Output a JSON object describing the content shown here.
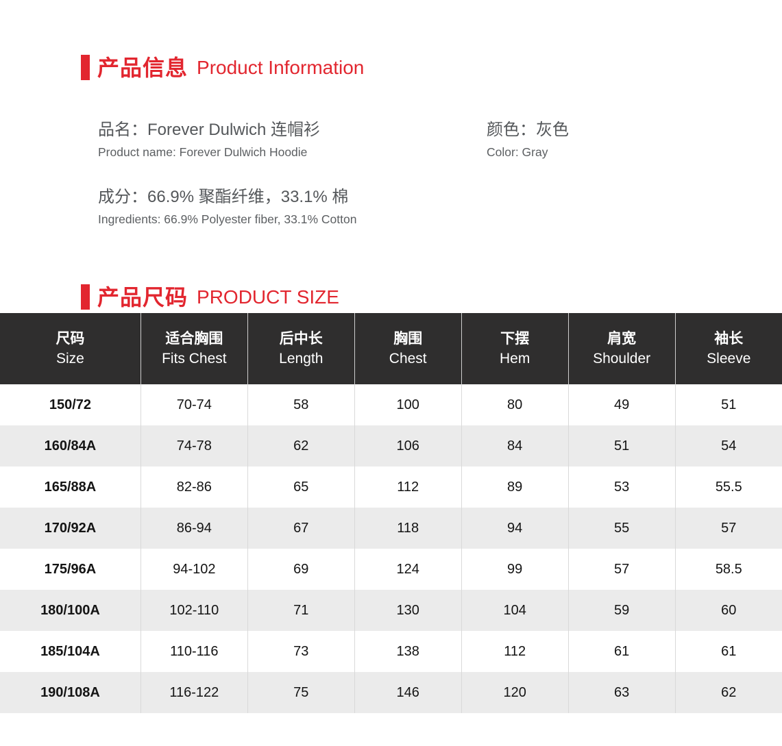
{
  "colors": {
    "accent_red": "#e2262f",
    "table_header_bg": "#2f2e2e",
    "row_stripe": "#ebebeb",
    "body_text": "#54575a"
  },
  "product_info": {
    "title_zh": "产品信息",
    "title_en": "Product Information",
    "fields": {
      "name": {
        "zh": "品名：Forever Dulwich 连帽衫",
        "en": "Product name: Forever Dulwich Hoodie"
      },
      "color": {
        "zh": "颜色：灰色",
        "en": "Color: Gray"
      },
      "ingredients": {
        "zh": "成分：66.9% 聚酯纤维，33.1% 棉",
        "en": "Ingredients: 66.9% Polyester fiber, 33.1% Cotton"
      }
    }
  },
  "size_section": {
    "title_zh": "产品尺码",
    "title_en": "PRODUCT SIZE",
    "table": {
      "columns": [
        {
          "zh": "尺码",
          "en": "Size"
        },
        {
          "zh": "适合胸围",
          "en": "Fits Chest"
        },
        {
          "zh": "后中长",
          "en": "Length"
        },
        {
          "zh": "胸围",
          "en": "Chest"
        },
        {
          "zh": "下摆",
          "en": "Hem"
        },
        {
          "zh": "肩宽",
          "en": "Shoulder"
        },
        {
          "zh": "袖长",
          "en": "Sleeve"
        }
      ],
      "rows": [
        [
          "150/72",
          "70-74",
          "58",
          "100",
          "80",
          "49",
          "51"
        ],
        [
          "160/84A",
          "74-78",
          "62",
          "106",
          "84",
          "51",
          "54"
        ],
        [
          "165/88A",
          "82-86",
          "65",
          "112",
          "89",
          "53",
          "55.5"
        ],
        [
          "170/92A",
          "86-94",
          "67",
          "118",
          "94",
          "55",
          "57"
        ],
        [
          "175/96A",
          "94-102",
          "69",
          "124",
          "99",
          "57",
          "58.5"
        ],
        [
          "180/100A",
          "102-110",
          "71",
          "130",
          "104",
          "59",
          "60"
        ],
        [
          "185/104A",
          "110-116",
          "73",
          "138",
          "112",
          "61",
          "61"
        ],
        [
          "190/108A",
          "116-122",
          "75",
          "146",
          "120",
          "63",
          "62"
        ]
      ]
    }
  }
}
